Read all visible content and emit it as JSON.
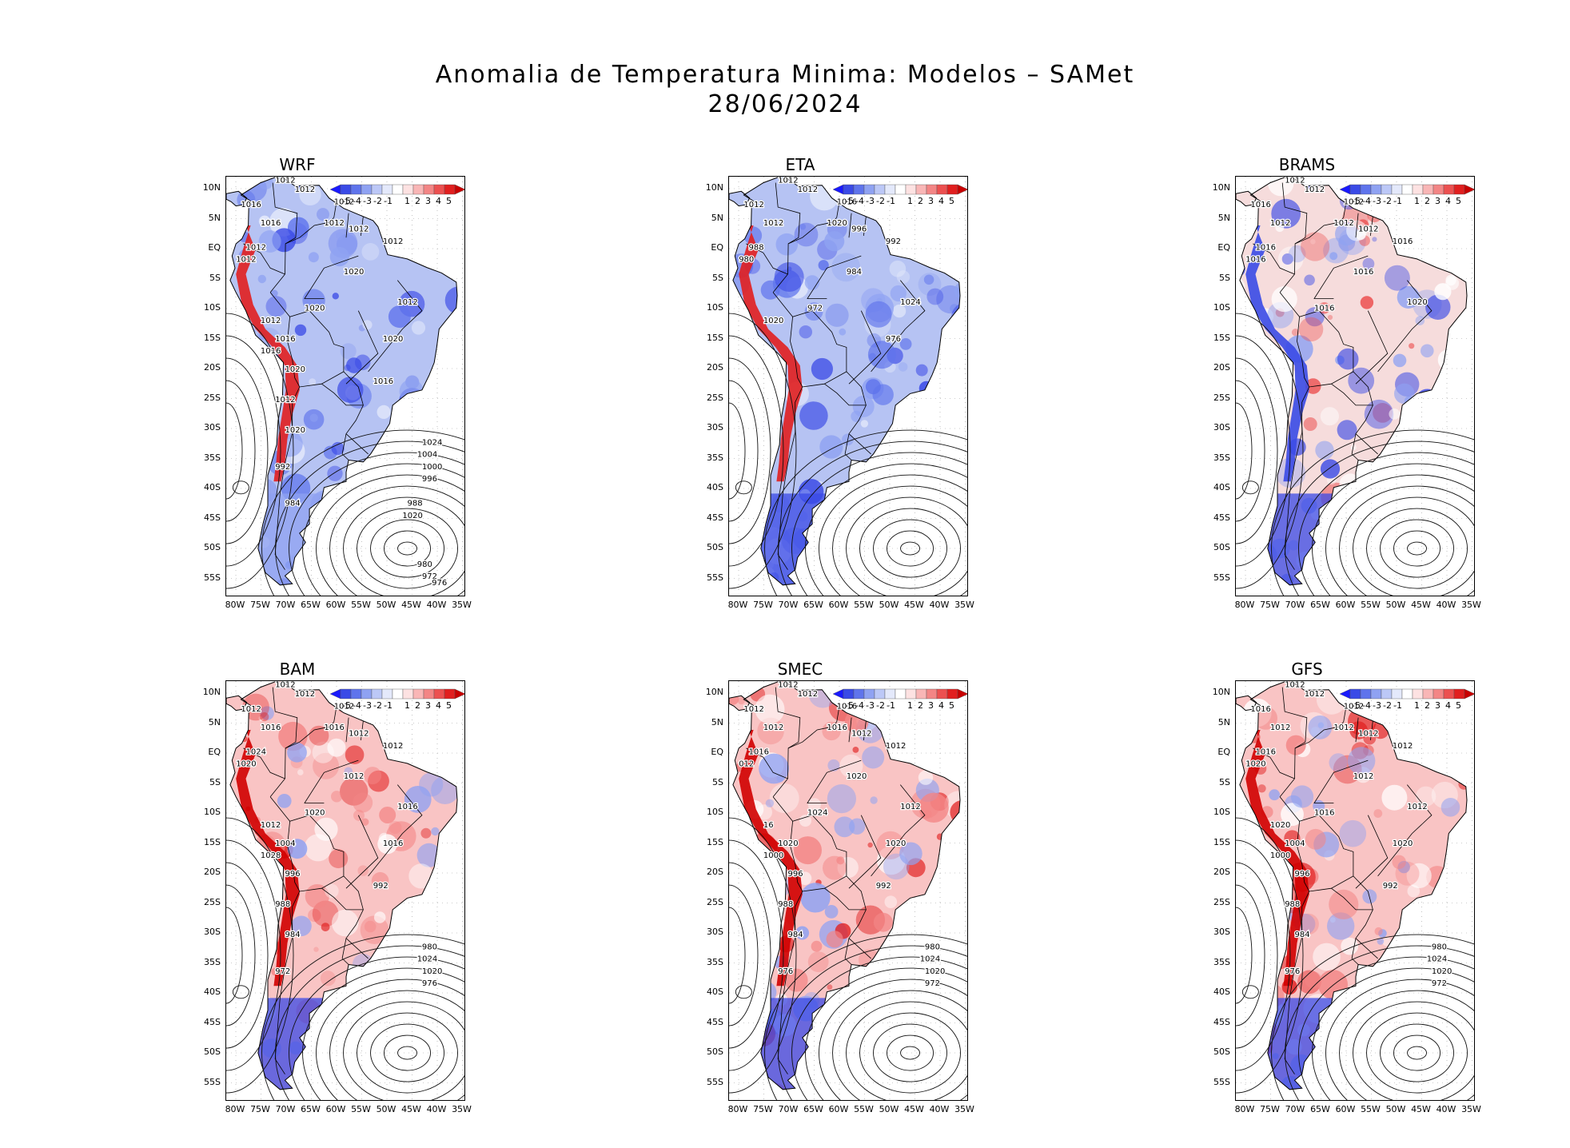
{
  "title": {
    "line1": "Anomalia de Temperatura Minima: Modelos – SAMet",
    "line2": "28/06/2024"
  },
  "axes": {
    "lat_labels": [
      "10N",
      "5N",
      "EQ",
      "5S",
      "10S",
      "15S",
      "20S",
      "25S",
      "30S",
      "35S",
      "40S",
      "45S",
      "50S",
      "55S"
    ],
    "lon_labels": [
      "80W",
      "75W",
      "70W",
      "65W",
      "60W",
      "55W",
      "50W",
      "45W",
      "40W",
      "35W"
    ]
  },
  "colorbar": {
    "labels": [
      "-5",
      "-4",
      "-3",
      "-2",
      "-1",
      "1",
      "2",
      "3",
      "4",
      "5"
    ],
    "colors": [
      "#1a1aff",
      "#3a4ae6",
      "#5f74ec",
      "#8fa2f2",
      "#bcc8f7",
      "#e4e9fb",
      "#ffffff",
      "#fde2e2",
      "#f9b6b6",
      "#f38585",
      "#ec5050",
      "#e11f1f",
      "#c80000"
    ]
  },
  "panels": [
    {
      "name": "WRF",
      "anomaly": "cold",
      "isobars": [
        "1012",
        "1012",
        "1016",
        "1012",
        "1016",
        "1012",
        "1012",
        "1012",
        "1012",
        "1020",
        "1012",
        "1012",
        "1020",
        "1012",
        "1020",
        "1016",
        "1016",
        "1020",
        "1016",
        "1012",
        "1020",
        "1024",
        "1004",
        "1000",
        "996",
        "992",
        "988",
        "1020",
        "984",
        "980",
        "972",
        "976"
      ]
    },
    {
      "name": "ETA",
      "anomaly": "cold",
      "isobars": [
        "1012",
        "1012",
        "1012",
        "1016",
        "1012",
        "1020",
        "996",
        "992",
        "988",
        "984",
        "980",
        "1024",
        "972",
        "1020",
        "976"
      ]
    },
    {
      "name": "BRAMS",
      "anomaly": "mixed",
      "isobars": [
        "1012",
        "1012",
        "1016",
        "1012",
        "1012",
        "1012",
        "1012",
        "1016",
        "1016",
        "1016",
        "1016",
        "1020",
        "1016"
      ]
    },
    {
      "name": "BAM",
      "anomaly": "warm",
      "isobars": [
        "1012",
        "1012",
        "1012",
        "1012",
        "1016",
        "1016",
        "1012",
        "1012",
        "1024",
        "1012",
        "1020",
        "1016",
        "1020",
        "1012",
        "1016",
        "1004",
        "1028",
        "996",
        "992",
        "988",
        "984",
        "980",
        "1024",
        "1020",
        "976",
        "972"
      ]
    },
    {
      "name": "SMEC",
      "anomaly": "warm",
      "isobars": [
        "1012",
        "1012",
        "1012",
        "1016",
        "1012",
        "1016",
        "1012",
        "1012",
        "1016",
        "1020",
        "012",
        "1012",
        "1024",
        "16",
        "1020",
        "1020",
        "1000",
        "996",
        "992",
        "988",
        "984",
        "980",
        "1024",
        "1020",
        "972",
        "976"
      ]
    },
    {
      "name": "GFS",
      "anomaly": "warm",
      "isobars": [
        "1012",
        "1012",
        "1016",
        "1012",
        "1012",
        "1012",
        "1012",
        "1012",
        "1016",
        "1012",
        "1020",
        "1012",
        "1016",
        "1020",
        "1020",
        "1004",
        "1000",
        "996",
        "992",
        "988",
        "984",
        "980",
        "1024",
        "1020",
        "972",
        "976"
      ]
    }
  ]
}
